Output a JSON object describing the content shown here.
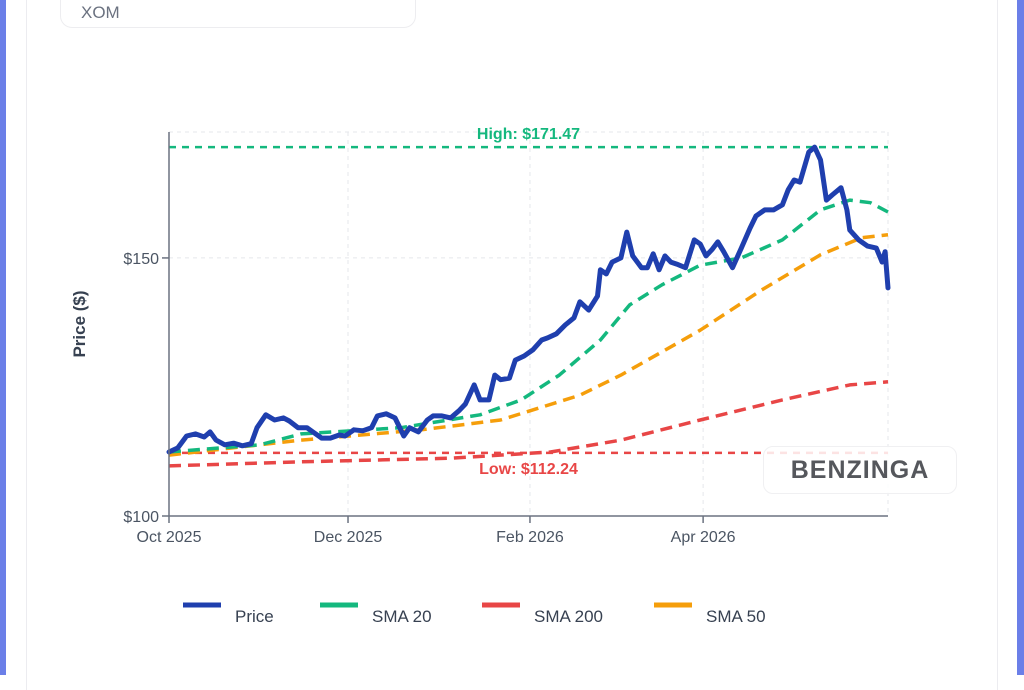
{
  "ticker": "XOM",
  "logo": "BENZINGA",
  "colors": {
    "price": "#1f3fae",
    "sma20": "#14b87e",
    "sma200": "#e84646",
    "sma50": "#f59e0b",
    "high": "#14b87e",
    "low": "#e84646"
  },
  "chart_data": {
    "type": "line",
    "title": "",
    "xlabel": "",
    "ylabel": "Price ($)",
    "x_unit": "days since 2025-10-01",
    "xlim": [
      0,
      245
    ],
    "ylim": [
      100,
      174.4
    ],
    "x_ticks": [
      {
        "day": 0,
        "label": "Oct 2025"
      },
      {
        "day": 61,
        "label": "Dec 2025"
      },
      {
        "day": 123,
        "label": "Feb 2026"
      },
      {
        "day": 182,
        "label": "Apr 2026"
      }
    ],
    "y_ticks": [
      {
        "value": 100,
        "label": "$100"
      },
      {
        "value": 150,
        "label": "$150"
      }
    ],
    "grid": true,
    "legend_position": "bottom",
    "annotations": [
      {
        "name": "high",
        "value": 171.47,
        "label": "High: $171.47"
      },
      {
        "name": "low",
        "value": 112.24,
        "label": "Low: $112.24"
      }
    ],
    "series": [
      {
        "name": "Price",
        "key": "price",
        "dashed": false,
        "x": [
          0,
          3,
          6,
          9,
          12,
          14,
          16,
          19,
          22,
          25,
          28,
          30,
          33,
          36,
          39,
          41,
          44,
          47,
          49,
          52,
          55,
          58,
          60,
          63,
          66,
          69,
          71,
          74,
          77,
          80,
          82,
          85,
          88,
          90,
          93,
          96,
          99,
          101,
          104,
          106,
          109,
          111,
          113,
          116,
          118,
          121,
          124,
          127,
          129,
          132,
          135,
          138,
          140,
          143,
          146,
          147,
          149,
          151,
          154,
          156,
          158,
          161,
          163,
          165,
          167,
          169,
          171,
          173,
          176,
          179,
          181,
          183,
          185,
          187,
          189,
          192,
          195,
          198,
          200,
          203,
          206,
          209,
          211,
          213,
          215,
          218,
          220,
          222,
          224,
          226,
          229,
          231,
          232,
          235,
          238,
          241,
          243,
          244,
          245
        ],
        "y": [
          112.4,
          113.2,
          115.5,
          115.9,
          115.3,
          116.3,
          114.7,
          113.8,
          114.1,
          113.6,
          114.0,
          117.1,
          119.6,
          118.6,
          119.0,
          118.4,
          117.1,
          117.1,
          116.3,
          115.1,
          115.1,
          115.7,
          115.5,
          116.7,
          116.5,
          117.1,
          119.4,
          119.8,
          119.0,
          115.5,
          117.1,
          116.3,
          118.6,
          119.4,
          119.4,
          119.0,
          120.5,
          121.7,
          125.4,
          122.5,
          122.5,
          127.3,
          126.4,
          126.7,
          130.2,
          131.0,
          132.2,
          134.1,
          134.5,
          135.3,
          137.0,
          138.4,
          141.5,
          139.9,
          142.6,
          147.7,
          146.9,
          149.2,
          150.0,
          155.0,
          150.4,
          148.1,
          148.1,
          150.8,
          147.7,
          150.4,
          149.2,
          148.8,
          148.1,
          153.5,
          152.7,
          150.4,
          151.6,
          153.1,
          151.2,
          148.1,
          151.9,
          155.8,
          158.1,
          159.3,
          159.3,
          160.3,
          163.2,
          165.1,
          164.7,
          170.5,
          171.47,
          169.0,
          161.2,
          162.2,
          163.6,
          159.3,
          155.4,
          153.5,
          152.3,
          151.9,
          149.2,
          151.2,
          144.2
        ]
      },
      {
        "name": "SMA 20",
        "key": "sma20",
        "dashed": true,
        "x": [
          0,
          31,
          45,
          79,
          106,
          120,
          133,
          147,
          157,
          168,
          181,
          195,
          209,
          222,
          232,
          239,
          245
        ],
        "y": [
          112.4,
          113.8,
          115.9,
          117.1,
          119.6,
          122.5,
          127.3,
          134.1,
          140.9,
          144.8,
          148.6,
          150.0,
          153.5,
          159.3,
          161.2,
          160.7,
          158.9
        ]
      },
      {
        "name": "SMA 200",
        "key": "sma200",
        "dashed": true,
        "x": [
          0,
          45,
          96,
          130,
          154,
          181,
          209,
          232,
          245
        ],
        "y": [
          109.7,
          110.5,
          111.2,
          112.4,
          114.7,
          118.6,
          122.5,
          125.4,
          126.0
        ]
      },
      {
        "name": "SMA 50",
        "key": "sma50",
        "dashed": true,
        "x": [
          0,
          45,
          86,
          113,
          140,
          154,
          181,
          202,
          222,
          236,
          245
        ],
        "y": [
          111.8,
          114.7,
          116.7,
          118.6,
          123.4,
          127.3,
          136.0,
          143.8,
          150.6,
          153.9,
          154.5
        ]
      }
    ]
  }
}
